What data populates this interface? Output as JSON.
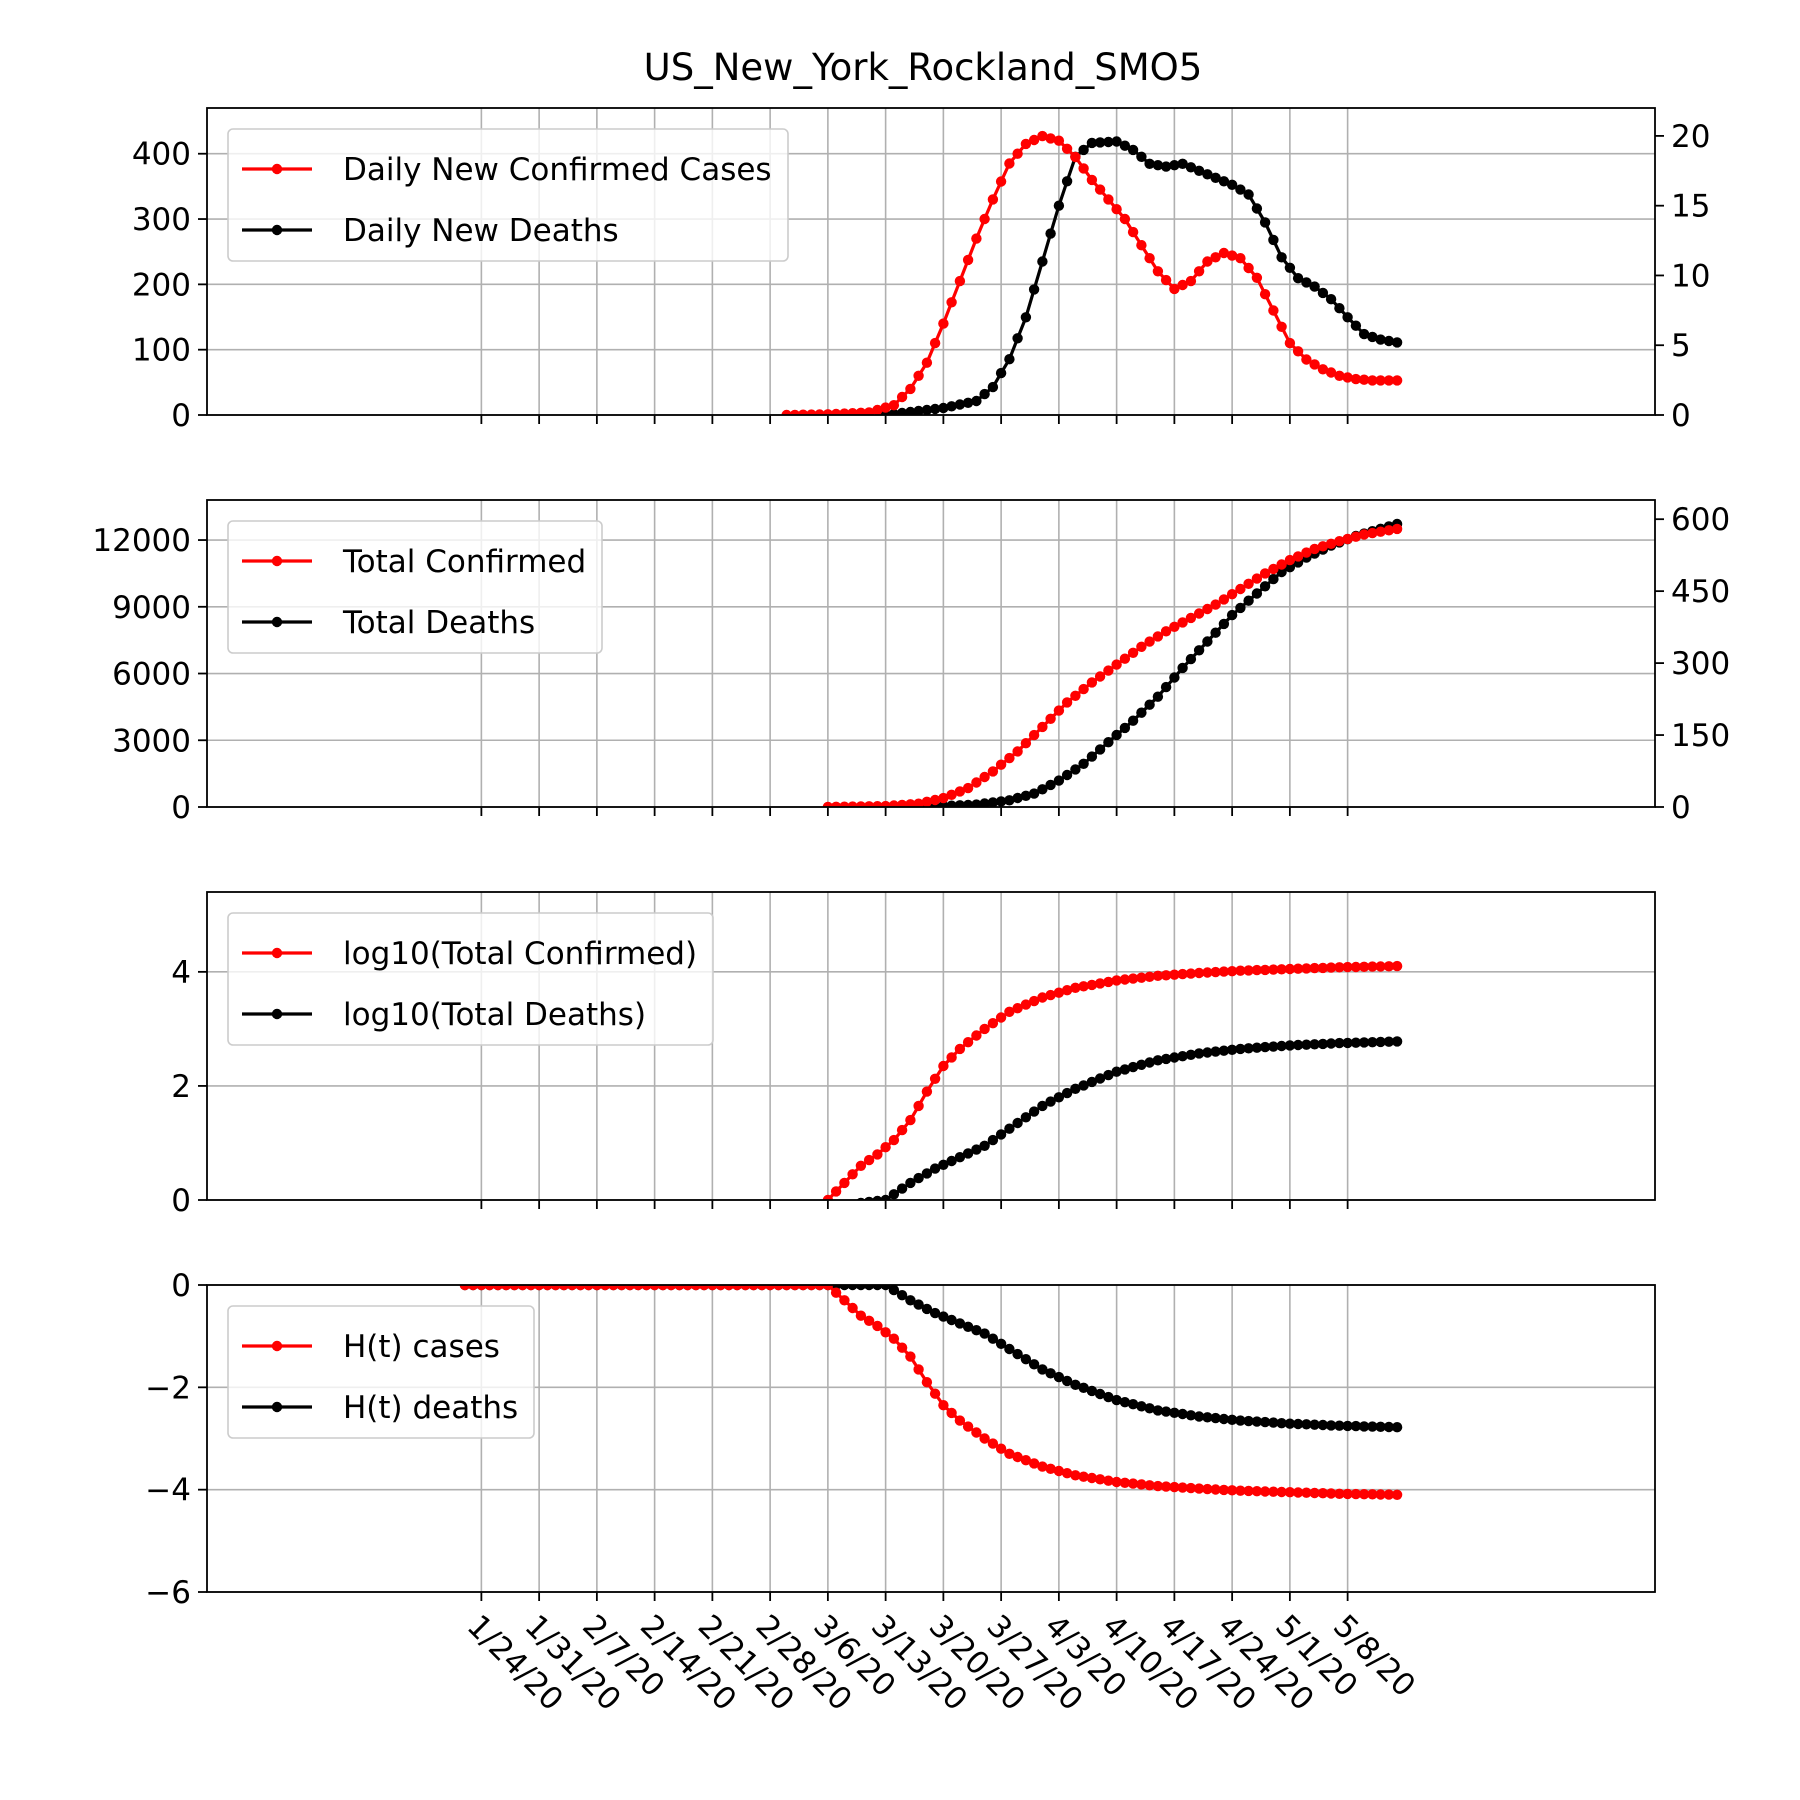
{
  "chart_data": {
    "title": "US_New_York_Rockland_SMO5",
    "type": "line",
    "x_start": "2020-01-22",
    "x_end": "2020-05-14",
    "x_ticks": [
      "1/24/20",
      "1/31/20",
      "2/7/20",
      "2/14/20",
      "2/21/20",
      "2/28/20",
      "3/6/20",
      "3/13/20",
      "3/20/20",
      "3/27/20",
      "4/3/20",
      "4/10/20",
      "4/17/20",
      "4/24/20",
      "5/1/20",
      "5/8/20"
    ],
    "grid": true,
    "legend_position": "top-left",
    "colors": {
      "cases": "#ff0000",
      "deaths": "#000000"
    },
    "panels": [
      {
        "left_ylim": [
          0,
          470
        ],
        "left_yticks": [
          0,
          100,
          200,
          300,
          400
        ],
        "right_ylim": [
          0,
          22
        ],
        "right_yticks": [
          0,
          5,
          10,
          15,
          20
        ],
        "series": [
          {
            "name": "Daily New Confirmed Cases",
            "color": "#ff0000",
            "axis": "left",
            "points": [
              [
                "3/1/20",
                0
              ],
              [
                "3/6/20",
                1
              ],
              [
                "3/11/20",
                4
              ],
              [
                "3/14/20",
                15
              ],
              [
                "3/16/20",
                40
              ],
              [
                "3/18/20",
                80
              ],
              [
                "3/20/20",
                140
              ],
              [
                "3/22/20",
                205
              ],
              [
                "3/24/20",
                270
              ],
              [
                "3/26/20",
                330
              ],
              [
                "3/28/20",
                385
              ],
              [
                "3/30/20",
                415
              ],
              [
                "4/1/20",
                427
              ],
              [
                "4/3/20",
                420
              ],
              [
                "4/5/20",
                395
              ],
              [
                "4/7/20",
                360
              ],
              [
                "4/9/20",
                330
              ],
              [
                "4/11/20",
                300
              ],
              [
                "4/13/20",
                260
              ],
              [
                "4/15/20",
                220
              ],
              [
                "4/17/20",
                193
              ],
              [
                "4/19/20",
                205
              ],
              [
                "4/21/20",
                235
              ],
              [
                "4/23/20",
                248
              ],
              [
                "4/25/20",
                240
              ],
              [
                "4/27/20",
                210
              ],
              [
                "4/29/20",
                160
              ],
              [
                "5/1/20",
                110
              ],
              [
                "5/3/20",
                85
              ],
              [
                "5/5/20",
                70
              ],
              [
                "5/7/20",
                60
              ],
              [
                "5/9/20",
                55
              ],
              [
                "5/11/20",
                53
              ],
              [
                "5/14/20",
                53
              ]
            ]
          },
          {
            "name": "Daily New Deaths",
            "color": "#000000",
            "axis": "right",
            "points": [
              [
                "3/13/20",
                0
              ],
              [
                "3/20/20",
                0.5
              ],
              [
                "3/24/20",
                1
              ],
              [
                "3/26/20",
                2
              ],
              [
                "3/28/20",
                4
              ],
              [
                "3/30/20",
                7
              ],
              [
                "4/1/20",
                11
              ],
              [
                "4/3/20",
                15
              ],
              [
                "4/5/20",
                18.5
              ],
              [
                "4/7/20",
                19.5
              ],
              [
                "4/10/20",
                19.6
              ],
              [
                "4/12/20",
                19
              ],
              [
                "4/14/20",
                18
              ],
              [
                "4/16/20",
                17.8
              ],
              [
                "4/18/20",
                18
              ],
              [
                "4/20/20",
                17.5
              ],
              [
                "4/22/20",
                17
              ],
              [
                "4/24/20",
                16.5
              ],
              [
                "4/26/20",
                15.8
              ],
              [
                "4/28/20",
                13.8
              ],
              [
                "4/30/20",
                11.3
              ],
              [
                "5/2/20",
                9.8
              ],
              [
                "5/4/20",
                9.2
              ],
              [
                "5/6/20",
                8.3
              ],
              [
                "5/8/20",
                7
              ],
              [
                "5/10/20",
                5.8
              ],
              [
                "5/12/20",
                5.4
              ],
              [
                "5/14/20",
                5.2
              ]
            ]
          }
        ]
      },
      {
        "left_ylim": [
          0,
          13800
        ],
        "left_yticks": [
          0,
          3000,
          6000,
          9000,
          12000
        ],
        "right_ylim": [
          0,
          640
        ],
        "right_yticks": [
          0,
          150,
          300,
          450,
          600
        ],
        "series": [
          {
            "name": "Total Confirmed",
            "color": "#ff0000",
            "axis": "left",
            "points": [
              [
                "3/6/20",
                5
              ],
              [
                "3/13/20",
                40
              ],
              [
                "3/17/20",
                150
              ],
              [
                "3/20/20",
                400
              ],
              [
                "3/23/20",
                850
              ],
              [
                "3/26/20",
                1600
              ],
              [
                "3/29/20",
                2500
              ],
              [
                "4/1/20",
                3600
              ],
              [
                "4/4/20",
                4700
              ],
              [
                "4/7/20",
                5600
              ],
              [
                "4/10/20",
                6400
              ],
              [
                "4/13/20",
                7200
              ],
              [
                "4/16/20",
                7900
              ],
              [
                "4/19/20",
                8500
              ],
              [
                "4/22/20",
                9100
              ],
              [
                "4/25/20",
                9800
              ],
              [
                "4/28/20",
                10500
              ],
              [
                "5/1/20",
                11100
              ],
              [
                "5/4/20",
                11600
              ],
              [
                "5/7/20",
                11950
              ],
              [
                "5/10/20",
                12250
              ],
              [
                "5/14/20",
                12500
              ]
            ]
          },
          {
            "name": "Total Deaths",
            "color": "#000000",
            "axis": "right",
            "points": [
              [
                "3/13/20",
                0
              ],
              [
                "3/20/20",
                2
              ],
              [
                "3/24/20",
                5
              ],
              [
                "3/28/20",
                14
              ],
              [
                "3/31/20",
                28
              ],
              [
                "4/3/20",
                55
              ],
              [
                "4/6/20",
                90
              ],
              [
                "4/9/20",
                135
              ],
              [
                "4/12/20",
                180
              ],
              [
                "4/15/20",
                230
              ],
              [
                "4/18/20",
                290
              ],
              [
                "4/21/20",
                345
              ],
              [
                "4/24/20",
                400
              ],
              [
                "4/27/20",
                445
              ],
              [
                "4/30/20",
                490
              ],
              [
                "5/3/20",
                520
              ],
              [
                "5/6/20",
                545
              ],
              [
                "5/9/20",
                565
              ],
              [
                "5/14/20",
                590
              ]
            ]
          }
        ]
      },
      {
        "left_ylim": [
          0,
          5.4
        ],
        "left_yticks": [
          0,
          2,
          4
        ],
        "series": [
          {
            "name": "log10(Total Confirmed)",
            "color": "#ff0000",
            "axis": "left",
            "points": [
              [
                "3/6/20",
                0
              ],
              [
                "3/8/20",
                0.3
              ],
              [
                "3/10/20",
                0.6
              ],
              [
                "3/12/20",
                0.8
              ],
              [
                "3/14/20",
                1.05
              ],
              [
                "3/16/20",
                1.4
              ],
              [
                "3/18/20",
                1.9
              ],
              [
                "3/20/20",
                2.35
              ],
              [
                "3/22/20",
                2.65
              ],
              [
                "3/25/20",
                3.0
              ],
              [
                "3/28/20",
                3.3
              ],
              [
                "4/1/20",
                3.55
              ],
              [
                "4/5/20",
                3.72
              ],
              [
                "4/10/20",
                3.85
              ],
              [
                "4/15/20",
                3.93
              ],
              [
                "4/20/20",
                3.98
              ],
              [
                "4/25/20",
                4.02
              ],
              [
                "5/1/20",
                4.05
              ],
              [
                "5/7/20",
                4.08
              ],
              [
                "5/14/20",
                4.1
              ]
            ]
          },
          {
            "name": "log10(Total Deaths)",
            "color": "#000000",
            "axis": "left",
            "points": [
              [
                "3/10/20",
                -0.05
              ],
              [
                "3/13/20",
                0.0
              ],
              [
                "3/16/20",
                0.3
              ],
              [
                "3/19/20",
                0.55
              ],
              [
                "3/22/20",
                0.75
              ],
              [
                "3/25/20",
                0.95
              ],
              [
                "3/28/20",
                1.25
              ],
              [
                "4/1/20",
                1.65
              ],
              [
                "4/5/20",
                1.95
              ],
              [
                "4/10/20",
                2.25
              ],
              [
                "4/15/20",
                2.45
              ],
              [
                "4/20/20",
                2.57
              ],
              [
                "4/25/20",
                2.65
              ],
              [
                "5/1/20",
                2.71
              ],
              [
                "5/7/20",
                2.75
              ],
              [
                "5/14/20",
                2.78
              ]
            ]
          }
        ]
      },
      {
        "left_ylim": [
          -6,
          0
        ],
        "left_yticks": [
          0,
          -2,
          -4,
          -6
        ],
        "series": [
          {
            "name": "H(t) cases",
            "color": "#ff0000",
            "axis": "left",
            "points": [
              [
                "1/22/20",
                0
              ],
              [
                "3/6/20",
                0
              ],
              [
                "3/8/20",
                -0.3
              ],
              [
                "3/10/20",
                -0.6
              ],
              [
                "3/12/20",
                -0.8
              ],
              [
                "3/14/20",
                -1.05
              ],
              [
                "3/16/20",
                -1.4
              ],
              [
                "3/18/20",
                -1.9
              ],
              [
                "3/20/20",
                -2.35
              ],
              [
                "3/22/20",
                -2.65
              ],
              [
                "3/25/20",
                -3.0
              ],
              [
                "3/28/20",
                -3.3
              ],
              [
                "4/1/20",
                -3.55
              ],
              [
                "4/5/20",
                -3.72
              ],
              [
                "4/10/20",
                -3.85
              ],
              [
                "4/15/20",
                -3.93
              ],
              [
                "4/20/20",
                -3.98
              ],
              [
                "4/25/20",
                -4.02
              ],
              [
                "5/1/20",
                -4.05
              ],
              [
                "5/7/20",
                -4.08
              ],
              [
                "5/14/20",
                -4.1
              ]
            ]
          },
          {
            "name": "H(t) deaths",
            "color": "#000000",
            "axis": "left",
            "points": [
              [
                "1/22/20",
                0
              ],
              [
                "3/13/20",
                0
              ],
              [
                "3/16/20",
                -0.3
              ],
              [
                "3/19/20",
                -0.55
              ],
              [
                "3/22/20",
                -0.75
              ],
              [
                "3/25/20",
                -0.95
              ],
              [
                "3/28/20",
                -1.25
              ],
              [
                "4/1/20",
                -1.65
              ],
              [
                "4/5/20",
                -1.95
              ],
              [
                "4/10/20",
                -2.25
              ],
              [
                "4/15/20",
                -2.45
              ],
              [
                "4/20/20",
                -2.57
              ],
              [
                "4/25/20",
                -2.65
              ],
              [
                "5/1/20",
                -2.71
              ],
              [
                "5/7/20",
                -2.75
              ],
              [
                "5/14/20",
                -2.78
              ]
            ]
          }
        ]
      }
    ]
  }
}
